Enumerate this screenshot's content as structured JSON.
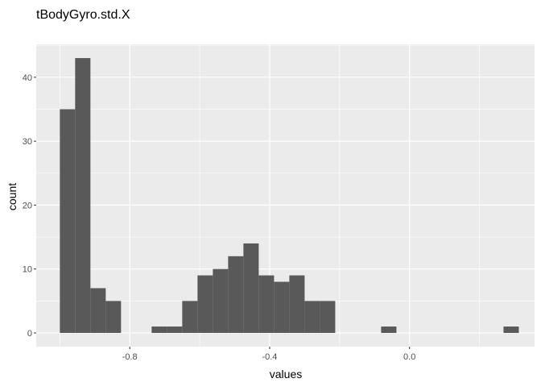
{
  "chart_data": {
    "type": "bar",
    "title": "tBodyGyro.std.X",
    "xlabel": "values",
    "ylabel": "count",
    "bin_width": 0.04375,
    "bins": [
      {
        "x0": -1.0,
        "count": 35
      },
      {
        "x0": -0.95625,
        "count": 43
      },
      {
        "x0": -0.9125,
        "count": 7
      },
      {
        "x0": -0.86875,
        "count": 5
      },
      {
        "x0": -0.825,
        "count": 0
      },
      {
        "x0": -0.78125,
        "count": 0
      },
      {
        "x0": -0.7375,
        "count": 1
      },
      {
        "x0": -0.69375,
        "count": 1
      },
      {
        "x0": -0.65,
        "count": 5
      },
      {
        "x0": -0.60625,
        "count": 9
      },
      {
        "x0": -0.5625,
        "count": 10
      },
      {
        "x0": -0.51875,
        "count": 12
      },
      {
        "x0": -0.475,
        "count": 14
      },
      {
        "x0": -0.43125,
        "count": 9
      },
      {
        "x0": -0.3875,
        "count": 8
      },
      {
        "x0": -0.34375,
        "count": 9
      },
      {
        "x0": -0.3,
        "count": 5
      },
      {
        "x0": -0.25625,
        "count": 5
      },
      {
        "x0": -0.2125,
        "count": 0
      },
      {
        "x0": -0.16875,
        "count": 0
      },
      {
        "x0": -0.125,
        "count": 0
      },
      {
        "x0": -0.08125,
        "count": 1
      },
      {
        "x0": -0.0375,
        "count": 0
      },
      {
        "x0": 0.00625,
        "count": 0
      },
      {
        "x0": 0.05,
        "count": 0
      },
      {
        "x0": 0.09375,
        "count": 0
      },
      {
        "x0": 0.1375,
        "count": 0
      },
      {
        "x0": 0.18125,
        "count": 0
      },
      {
        "x0": 0.225,
        "count": 0
      },
      {
        "x0": 0.26875,
        "count": 1
      }
    ],
    "xlim": [
      -1.0675,
      0.3575
    ],
    "ylim": [
      -2.15,
      45.15
    ],
    "x_ticks": [
      {
        "value": -0.8,
        "label": "-0.8"
      },
      {
        "value": -0.4,
        "label": "-0.4"
      },
      {
        "value": 0.0,
        "label": "0.0"
      }
    ],
    "y_ticks": [
      {
        "value": 0,
        "label": "0"
      },
      {
        "value": 10,
        "label": "10"
      },
      {
        "value": 20,
        "label": "20"
      },
      {
        "value": 30,
        "label": "30"
      },
      {
        "value": 40,
        "label": "40"
      }
    ],
    "grid": true,
    "colors": {
      "panel_background": "#EBEBEB",
      "grid_major": "#FFFFFF",
      "bar_fill": "#595959"
    }
  }
}
